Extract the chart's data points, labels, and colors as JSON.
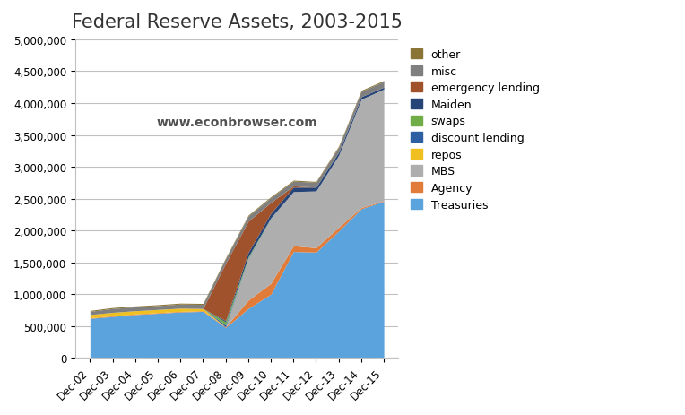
{
  "title": "Federal Reserve Assets, 2003-2015",
  "watermark": "www.econbrowser.com",
  "ylim": [
    0,
    5000000
  ],
  "yticks": [
    0,
    500000,
    1000000,
    1500000,
    2000000,
    2500000,
    3000000,
    3500000,
    4000000,
    4500000,
    5000000
  ],
  "x_labels": [
    "Dec-02",
    "Dec-03",
    "Dec-04",
    "Dec-05",
    "Dec-06",
    "Dec-07",
    "Dec-08",
    "Dec-09",
    "Dec-10",
    "Dec-11",
    "Dec-12",
    "Dec-13",
    "Dec-14",
    "Dec-15"
  ],
  "series_order": [
    "Treasuries",
    "Agency",
    "MBS",
    "repos",
    "discount lending",
    "swaps",
    "Maiden",
    "emergency lending",
    "misc",
    "other"
  ],
  "legend_order": [
    "other",
    "misc",
    "emergency lending",
    "Maiden",
    "swaps",
    "discount lending",
    "repos",
    "MBS",
    "Agency",
    "Treasuries"
  ],
  "colors": {
    "Treasuries": "#5BA3DC",
    "Agency": "#E07B39",
    "MBS": "#AEAEAE",
    "repos": "#F0C020",
    "discount lending": "#2E5FA3",
    "swaps": "#70AD47",
    "Maiden": "#264478",
    "emergency lending": "#A0522D",
    "misc": "#7F7F7F",
    "other": "#8B7536"
  },
  "data": {
    "Treasuries": [
      620000,
      650000,
      680000,
      700000,
      720000,
      730000,
      476000,
      776000,
      1000000,
      1670000,
      1660000,
      1990000,
      2340000,
      2460000
    ],
    "Agency": [
      10000,
      10000,
      10000,
      10000,
      10000,
      10000,
      10000,
      130000,
      170000,
      90000,
      70000,
      60000,
      20000,
      10000
    ],
    "MBS": [
      0,
      0,
      0,
      0,
      0,
      0,
      0,
      650000,
      1020000,
      850000,
      890000,
      1130000,
      1700000,
      1750000
    ],
    "repos": [
      50000,
      55000,
      50000,
      50000,
      50000,
      35000,
      0,
      0,
      0,
      0,
      0,
      0,
      0,
      0
    ],
    "discount lending": [
      0,
      0,
      0,
      0,
      0,
      0,
      30000,
      10000,
      5000,
      0,
      0,
      0,
      0,
      0
    ],
    "swaps": [
      0,
      0,
      0,
      0,
      0,
      0,
      50000,
      20000,
      5000,
      0,
      0,
      0,
      0,
      0
    ],
    "Maiden": [
      0,
      0,
      0,
      0,
      0,
      0,
      20000,
      70000,
      70000,
      70000,
      60000,
      50000,
      40000,
      30000
    ],
    "emergency lending": [
      0,
      0,
      0,
      0,
      0,
      0,
      900000,
      490000,
      170000,
      20000,
      0,
      0,
      0,
      0
    ],
    "misc": [
      50000,
      60000,
      60000,
      60000,
      65000,
      65000,
      70000,
      80000,
      75000,
      75000,
      75000,
      80000,
      85000,
      90000
    ],
    "other": [
      15000,
      15000,
      15000,
      15000,
      15000,
      15000,
      15000,
      15000,
      15000,
      15000,
      15000,
      15000,
      15000,
      15000
    ]
  },
  "background_color": "#FFFFFF",
  "grid_color": "#C0C0C0",
  "legend_fontsize": 9,
  "title_fontsize": 15
}
